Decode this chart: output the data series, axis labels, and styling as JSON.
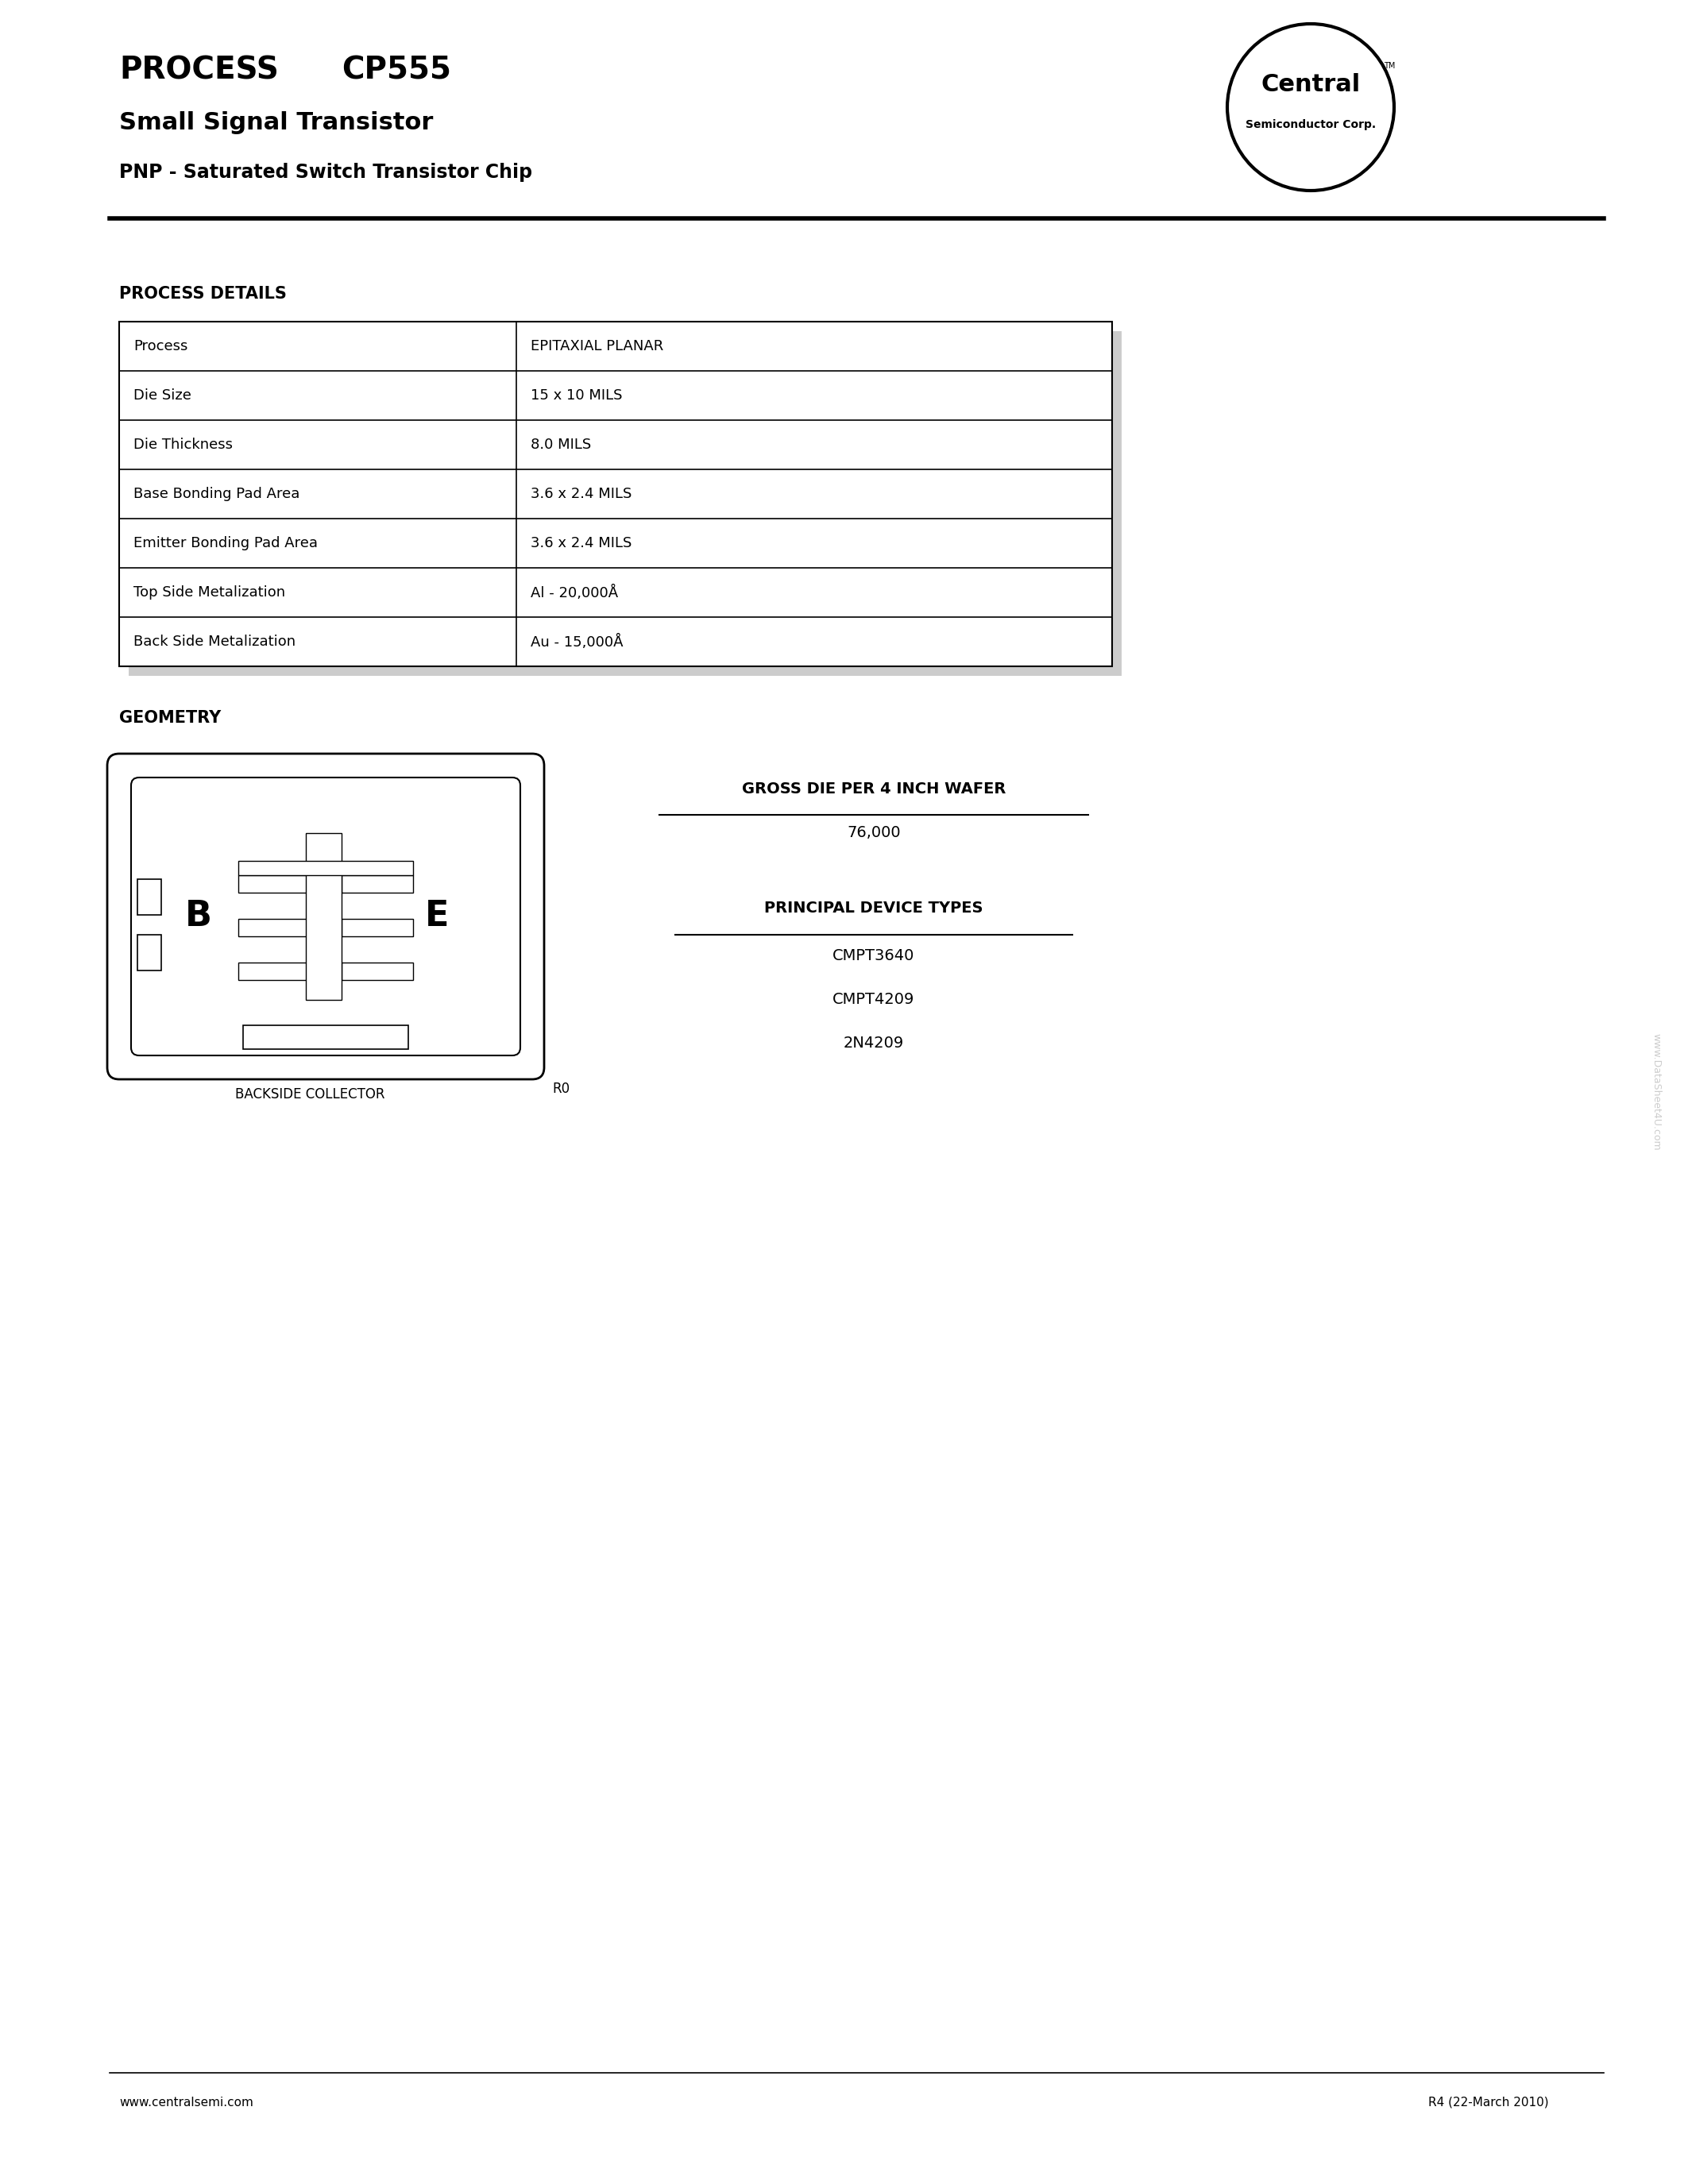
{
  "title_process": "PROCESS",
  "title_model": "CP555",
  "subtitle1": "Small Signal Transistor",
  "subtitle2": "PNP - Saturated Switch Transistor Chip",
  "company_name": "Central",
  "company_sub": "Semiconductor Corp.",
  "section1_title": "PROCESS DETAILS",
  "table_rows": [
    [
      "Process",
      "EPITAXIAL PLANAR"
    ],
    [
      "Die Size",
      "15 x 10 MILS"
    ],
    [
      "Die Thickness",
      "8.0 MILS"
    ],
    [
      "Base Bonding Pad Area",
      "3.6 x 2.4 MILS"
    ],
    [
      "Emitter Bonding Pad Area",
      "3.6 x 2.4 MILS"
    ],
    [
      "Top Side Metalization",
      "Al - 20,000Å"
    ],
    [
      "Back Side Metalization",
      "Au - 15,000Å"
    ]
  ],
  "section2_title": "GEOMETRY",
  "geometry_label_b": "B",
  "geometry_label_e": "E",
  "geometry_caption": "BACKSIDE COLLECTOR",
  "geometry_ref": "R0",
  "gross_die_title": "GROSS DIE PER 4 INCH WAFER",
  "gross_die_value": "76,000",
  "principal_title": "PRINCIPAL DEVICE TYPES",
  "principal_devices": [
    "CMPT3640",
    "CMPT4209",
    "2N4209"
  ],
  "footer_left": "www.centralsemi.com",
  "footer_right": "R4 (22-March 2010)",
  "watermark": "www.DataSheet4U.com",
  "bg_color": "#ffffff",
  "text_color": "#000000",
  "table_border_color": "#000000",
  "header_line_color": "#000000"
}
